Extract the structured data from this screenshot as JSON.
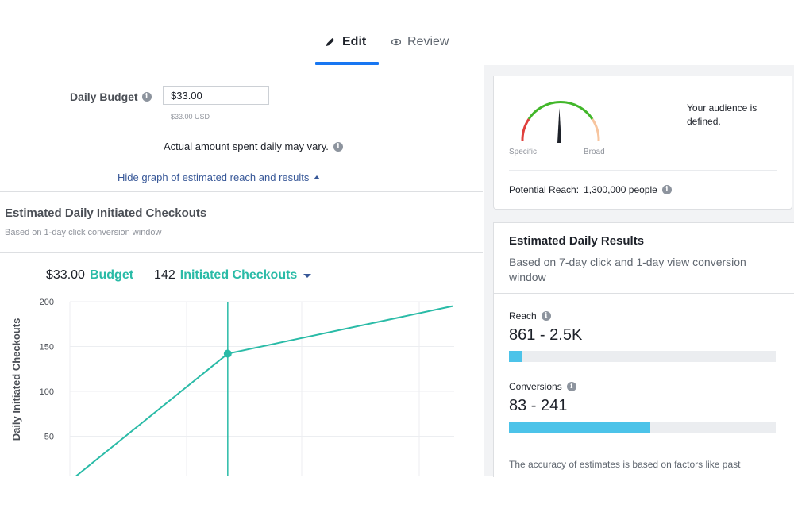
{
  "tabs": [
    {
      "label": "Edit",
      "icon": "pencil-icon",
      "active": true
    },
    {
      "label": "Review",
      "icon": "eye-icon",
      "active": false
    }
  ],
  "budget": {
    "label": "Daily Budget",
    "value": "$33.00",
    "currency_note": "$33.00 USD",
    "note": "Actual amount spent daily may vary.",
    "toggle_graph": "Hide graph of estimated reach and results"
  },
  "graph": {
    "title": "Estimated Daily Initiated Checkouts",
    "subtitle": "Based on 1-day click conversion window",
    "legend": {
      "budget_value": "$33.00",
      "budget_label": "Budget",
      "result_value": "142",
      "result_label": "Initiated Checkouts"
    }
  },
  "chart_data": {
    "type": "line",
    "ylabel": "Daily Initiated Checkouts",
    "xlabel": "",
    "yticks": [
      200,
      150,
      100,
      50
    ],
    "ylim": [
      0,
      200
    ],
    "accent_color": "#2abba7",
    "series": [
      {
        "x": [
          0,
          33,
          80
        ],
        "y": [
          0,
          142,
          195
        ]
      }
    ],
    "marker": {
      "x": 33,
      "y": 142
    },
    "grid": true
  },
  "audience": {
    "text": "Your audience is defined.",
    "gauge_left": "Specific",
    "gauge_right": "Broad",
    "reach_label": "Potential Reach:",
    "reach_value": "1,300,000 people"
  },
  "results": {
    "title": "Estimated Daily Results",
    "subtitle": "Based on 7-day click and 1-day view conversion window",
    "reach": {
      "label": "Reach",
      "value": "861 - 2.5K",
      "fill": 0.05
    },
    "conversions": {
      "label": "Conversions",
      "value": "83 - 241",
      "fill": 0.53
    },
    "accuracy": "The accuracy of estimates is based on factors like past"
  }
}
